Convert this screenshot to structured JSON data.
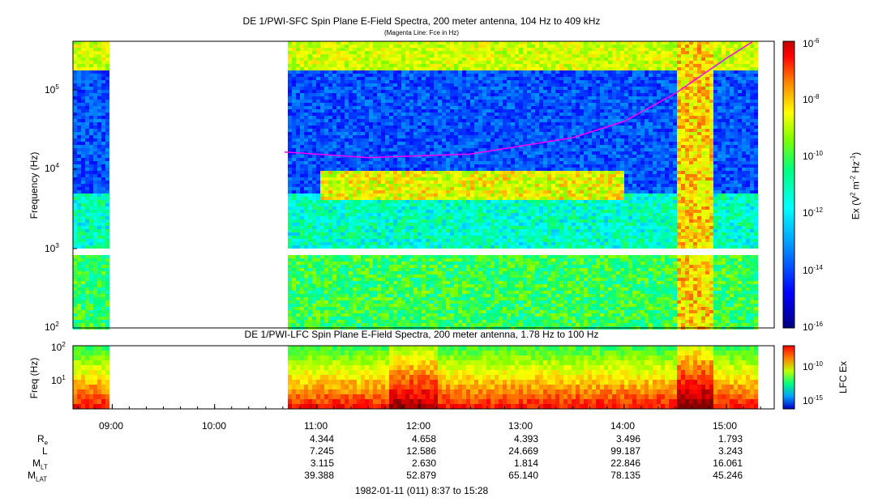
{
  "chart_data": [
    {
      "type": "heatmap",
      "title": "DE 1/PWI-SFC  Spin Plane E-Field Spectra, 200 meter antenna, 104 Hz to 409 kHz",
      "subtitle": "(Magenta Line: Fce in Hz)",
      "ylabel": "Frequency (Hz)",
      "yscale": "log",
      "ylim": [
        100,
        409000
      ],
      "yticks": [
        "10^2",
        "10^3",
        "10^4",
        "10^5"
      ],
      "colorbar": {
        "label": "Ex (V^2 m^-2 Hz^-1)",
        "scale": "log",
        "range": [
          1e-16,
          1e-06
        ],
        "ticks": [
          "10^-6",
          "10^-8",
          "10^-10",
          "10^-12",
          "10^-14",
          "10^-16"
        ]
      },
      "data_gaps": [
        [
          "08:57",
          "10:41"
        ]
      ],
      "fce_line": {
        "name": "Fce",
        "color": "#ff00ff",
        "points": [
          {
            "t": "10:41",
            "hz": 16500
          },
          {
            "t": "11:30",
            "hz": 14000
          },
          {
            "t": "12:30",
            "hz": 15500
          },
          {
            "t": "13:30",
            "hz": 25000
          },
          {
            "t": "14:00",
            "hz": 40000
          },
          {
            "t": "14:30",
            "hz": 90000
          },
          {
            "t": "15:00",
            "hz": 250000
          },
          {
            "t": "15:15",
            "hz": 400000
          }
        ]
      }
    },
    {
      "type": "heatmap",
      "title": "DE 1/PWI-LFC  Spin Plane E-Field Spectra, 200 meter antenna, 1.78 Hz to 100 Hz",
      "ylabel": "Freq (Hz)",
      "yscale": "log",
      "ylim": [
        1.78,
        100
      ],
      "yticks": [
        "10^1",
        "10^2"
      ],
      "colorbar": {
        "label": "LFC Ex",
        "scale": "log",
        "ticks": [
          "10^-10",
          "10^-15"
        ]
      },
      "data_gaps": [
        [
          "08:57",
          "10:41"
        ]
      ]
    }
  ],
  "time_axis": {
    "start": "08:37",
    "end": "15:28",
    "tick_labels": [
      "09:00",
      "10:00",
      "11:00",
      "12:00",
      "13:00",
      "14:00",
      "15:00"
    ]
  },
  "ephemeris": {
    "rows": [
      {
        "label": "R",
        "sub": "e",
        "values": [
          "4.344",
          "4.658",
          "4.393",
          "3.496",
          "1.793"
        ]
      },
      {
        "label": "L",
        "sub": "",
        "values": [
          "7.245",
          "12.586",
          "24.669",
          "99.187",
          "3.243"
        ]
      },
      {
        "label": "M",
        "sub": "LT",
        "values": [
          "3.115",
          "2.630",
          "1.814",
          "22.846",
          "16.061"
        ]
      },
      {
        "label": "M",
        "sub": "LAT",
        "values": [
          "39.388",
          "52.879",
          "65.140",
          "78.135",
          "45.246"
        ]
      }
    ]
  },
  "footer": "1982-01-11 (011) 8:37 to 15:28",
  "colors": {
    "fce_line": "#ff00ff",
    "gap": "#ffffff",
    "colormap": [
      "#000080",
      "#0000ff",
      "#0080ff",
      "#00ffff",
      "#00ff80",
      "#80ff00",
      "#ffff00",
      "#ff8000",
      "#ff0000",
      "#800000"
    ]
  }
}
